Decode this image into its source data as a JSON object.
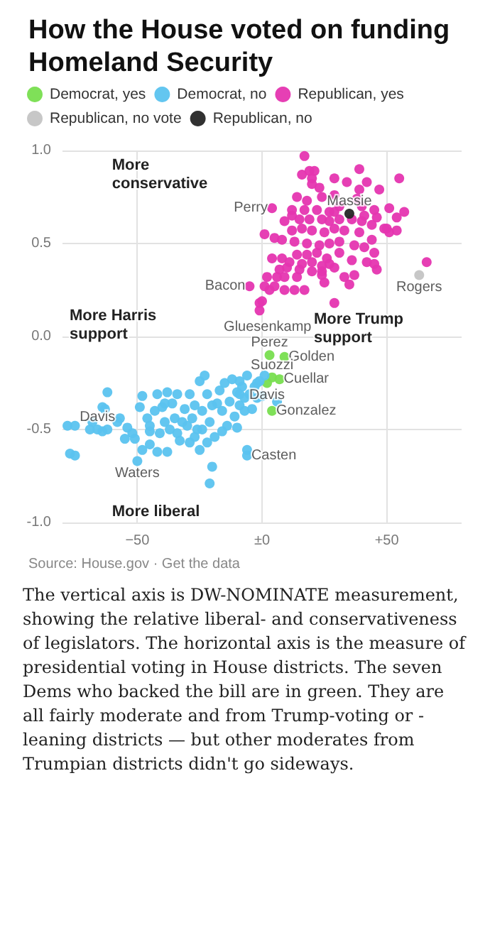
{
  "chart_data": {
    "type": "scatter",
    "title": "How the House voted on funding Homeland Security",
    "xlim": [
      -80,
      80
    ],
    "ylim": [
      -1,
      1
    ],
    "xticks": [
      {
        "value": -50,
        "label": "−50"
      },
      {
        "value": 0,
        "label": "±0"
      },
      {
        "value": 50,
        "label": "+50"
      }
    ],
    "yticks": [
      {
        "value": -1,
        "label": "-1.0"
      },
      {
        "value": -0.5,
        "label": "-0.5"
      },
      {
        "value": 0,
        "label": "0.0"
      },
      {
        "value": 0.5,
        "label": "0.5"
      },
      {
        "value": 1,
        "label": "1.0"
      }
    ],
    "grid": true,
    "legend": "top",
    "marker": "circle",
    "series": [
      {
        "name": "Democrat, yes",
        "color": "#78de4f",
        "x": [
          3,
          9,
          4,
          7,
          2,
          4
        ],
        "values": [
          -0.1,
          -0.11,
          -0.22,
          -0.23,
          -0.25,
          -0.4
        ]
      },
      {
        "name": "Democrat, no",
        "color": "#5bc3ef",
        "x": [
          -78,
          -75,
          -69,
          -64,
          -62,
          -63,
          -62,
          -57,
          -54,
          -52,
          -51,
          -49,
          -48,
          -46,
          -45,
          -45,
          -43,
          -42,
          -40,
          -39,
          -38,
          -36,
          -35,
          -34,
          -33,
          -31,
          -30,
          -29,
          -28,
          -27,
          -26,
          -25,
          -24,
          -23,
          -22,
          -21,
          -20,
          -19,
          -17,
          -16,
          -15,
          -14,
          -13,
          -12,
          -11,
          -10,
          -9,
          -9,
          -8,
          -7,
          -6,
          -5,
          -4,
          -3,
          -2,
          -1,
          0,
          1,
          -77,
          -75,
          -64,
          -48,
          -42,
          -38,
          -25,
          -20,
          -21,
          -6,
          6,
          -55,
          -37,
          -29,
          -22,
          -16,
          -10,
          -24,
          -32,
          -41,
          -45,
          -58,
          -68,
          -27,
          -18,
          -39,
          -34,
          -9,
          -2,
          -7,
          -66,
          -50,
          -6
        ],
        "values": [
          -0.48,
          -0.48,
          -0.5,
          -0.51,
          -0.5,
          -0.39,
          -0.3,
          -0.44,
          -0.49,
          -0.52,
          -0.55,
          -0.38,
          -0.32,
          -0.44,
          -0.51,
          -0.48,
          -0.4,
          -0.31,
          -0.38,
          -0.46,
          -0.3,
          -0.36,
          -0.44,
          -0.52,
          -0.56,
          -0.39,
          -0.48,
          -0.31,
          -0.44,
          -0.37,
          -0.5,
          -0.24,
          -0.4,
          -0.21,
          -0.31,
          -0.46,
          -0.37,
          -0.54,
          -0.29,
          -0.4,
          -0.25,
          -0.48,
          -0.35,
          -0.23,
          -0.43,
          -0.3,
          -0.37,
          -0.24,
          -0.27,
          -0.33,
          -0.21,
          -0.31,
          -0.39,
          -0.27,
          -0.33,
          -0.24,
          -0.32,
          -0.21,
          -0.63,
          -0.64,
          -0.38,
          -0.61,
          -0.62,
          -0.62,
          -0.61,
          -0.7,
          -0.79,
          -0.61,
          -0.35,
          -0.55,
          -0.5,
          -0.57,
          -0.57,
          -0.51,
          -0.49,
          -0.5,
          -0.46,
          -0.52,
          -0.58,
          -0.46,
          -0.46,
          -0.54,
          -0.36,
          -0.36,
          -0.31,
          -0.31,
          -0.25,
          -0.4,
          -0.5,
          -0.67,
          -0.64
        ]
      },
      {
        "name": "Republican, yes",
        "color": "#e535b0",
        "x": [
          17,
          16,
          19,
          21,
          20,
          23,
          20,
          29,
          34,
          39,
          42,
          39,
          47,
          55,
          14,
          18,
          24,
          29,
          38,
          31,
          40,
          45,
          51,
          57,
          12,
          17,
          22,
          27,
          29,
          41,
          46,
          54,
          9,
          12,
          15,
          19,
          24,
          27,
          31,
          36,
          40,
          44,
          50,
          51,
          54,
          1,
          5,
          8,
          12,
          16,
          20,
          25,
          29,
          33,
          39,
          44,
          49,
          13,
          18,
          23,
          27,
          31,
          37,
          41,
          14,
          18,
          22,
          26,
          31,
          45,
          4,
          8,
          11,
          16,
          20,
          24,
          27,
          36,
          42,
          7,
          10,
          15,
          20,
          24,
          29,
          45,
          46,
          2,
          6,
          9,
          14,
          24,
          33,
          37,
          1,
          5,
          9,
          13,
          17,
          25,
          35,
          3,
          0,
          -1,
          -1,
          29,
          66,
          4,
          -5
        ],
        "values": [
          0.97,
          0.87,
          0.89,
          0.89,
          0.85,
          0.8,
          0.82,
          0.85,
          0.83,
          0.9,
          0.83,
          0.79,
          0.79,
          0.85,
          0.75,
          0.73,
          0.75,
          0.76,
          0.74,
          0.7,
          0.7,
          0.68,
          0.69,
          0.67,
          0.68,
          0.68,
          0.68,
          0.67,
          0.67,
          0.65,
          0.64,
          0.64,
          0.62,
          0.65,
          0.63,
          0.63,
          0.63,
          0.62,
          0.63,
          0.63,
          0.62,
          0.6,
          0.58,
          0.56,
          0.57,
          0.55,
          0.53,
          0.52,
          0.57,
          0.58,
          0.57,
          0.56,
          0.58,
          0.57,
          0.56,
          0.52,
          0.58,
          0.51,
          0.5,
          0.49,
          0.5,
          0.51,
          0.49,
          0.48,
          0.44,
          0.44,
          0.45,
          0.42,
          0.45,
          0.45,
          0.42,
          0.42,
          0.4,
          0.39,
          0.4,
          0.38,
          0.39,
          0.41,
          0.4,
          0.36,
          0.37,
          0.36,
          0.35,
          0.35,
          0.37,
          0.39,
          0.36,
          0.32,
          0.32,
          0.32,
          0.32,
          0.33,
          0.32,
          0.33,
          0.27,
          0.27,
          0.25,
          0.25,
          0.25,
          0.29,
          0.28,
          0.25,
          0.19,
          0.18,
          0.14,
          0.18,
          0.4,
          0.69,
          0.27
        ]
      },
      {
        "name": "Republican, no vote",
        "color": "#c4c4c4",
        "x": [
          63
        ],
        "values": [
          0.33
        ]
      },
      {
        "name": "Republican, no",
        "color": "#262626",
        "x": [
          35
        ],
        "values": [
          0.66
        ]
      }
    ],
    "annotations": [
      {
        "text": "Perry",
        "x": 4,
        "y": 0.69
      },
      {
        "text": "Massie",
        "x": 35,
        "y": 0.66
      },
      {
        "text": "Bacon",
        "x": -5,
        "y": 0.27
      },
      {
        "text": "Rogers",
        "x": 63,
        "y": 0.33
      },
      {
        "text": "Gluesenkamp Perez",
        "x": 3,
        "y": -0.1
      },
      {
        "text": "Golden",
        "x": 9,
        "y": -0.11
      },
      {
        "text": "Suozzi",
        "x": 4,
        "y": -0.22
      },
      {
        "text": "Cuellar",
        "x": 7,
        "y": -0.23
      },
      {
        "text": "Davis",
        "x": 2,
        "y": -0.25
      },
      {
        "text": "Gonzalez",
        "x": 4,
        "y": -0.4
      },
      {
        "text": "Casten",
        "x": -6,
        "y": -0.64
      },
      {
        "text": "Davis",
        "x": -66,
        "y": -0.5
      },
      {
        "text": "Waters",
        "x": -50,
        "y": -0.67
      },
      "More conservative",
      "More Harris support",
      "More Trump support",
      "More liberal",
      "Source: House.gov · Get the data",
      "The vertical axis is DW-NOMINATE measurement, showing the relative liberal- and conservativeness of legislators. The horizontal axis is the measure of presidential voting in House districts. The seven Dems who backed the bill are in green. They are all fairly moderate and from Trump-voting or -leaning districts — but other moderates from Trumpian districts didn't go sideways."
    ]
  }
}
